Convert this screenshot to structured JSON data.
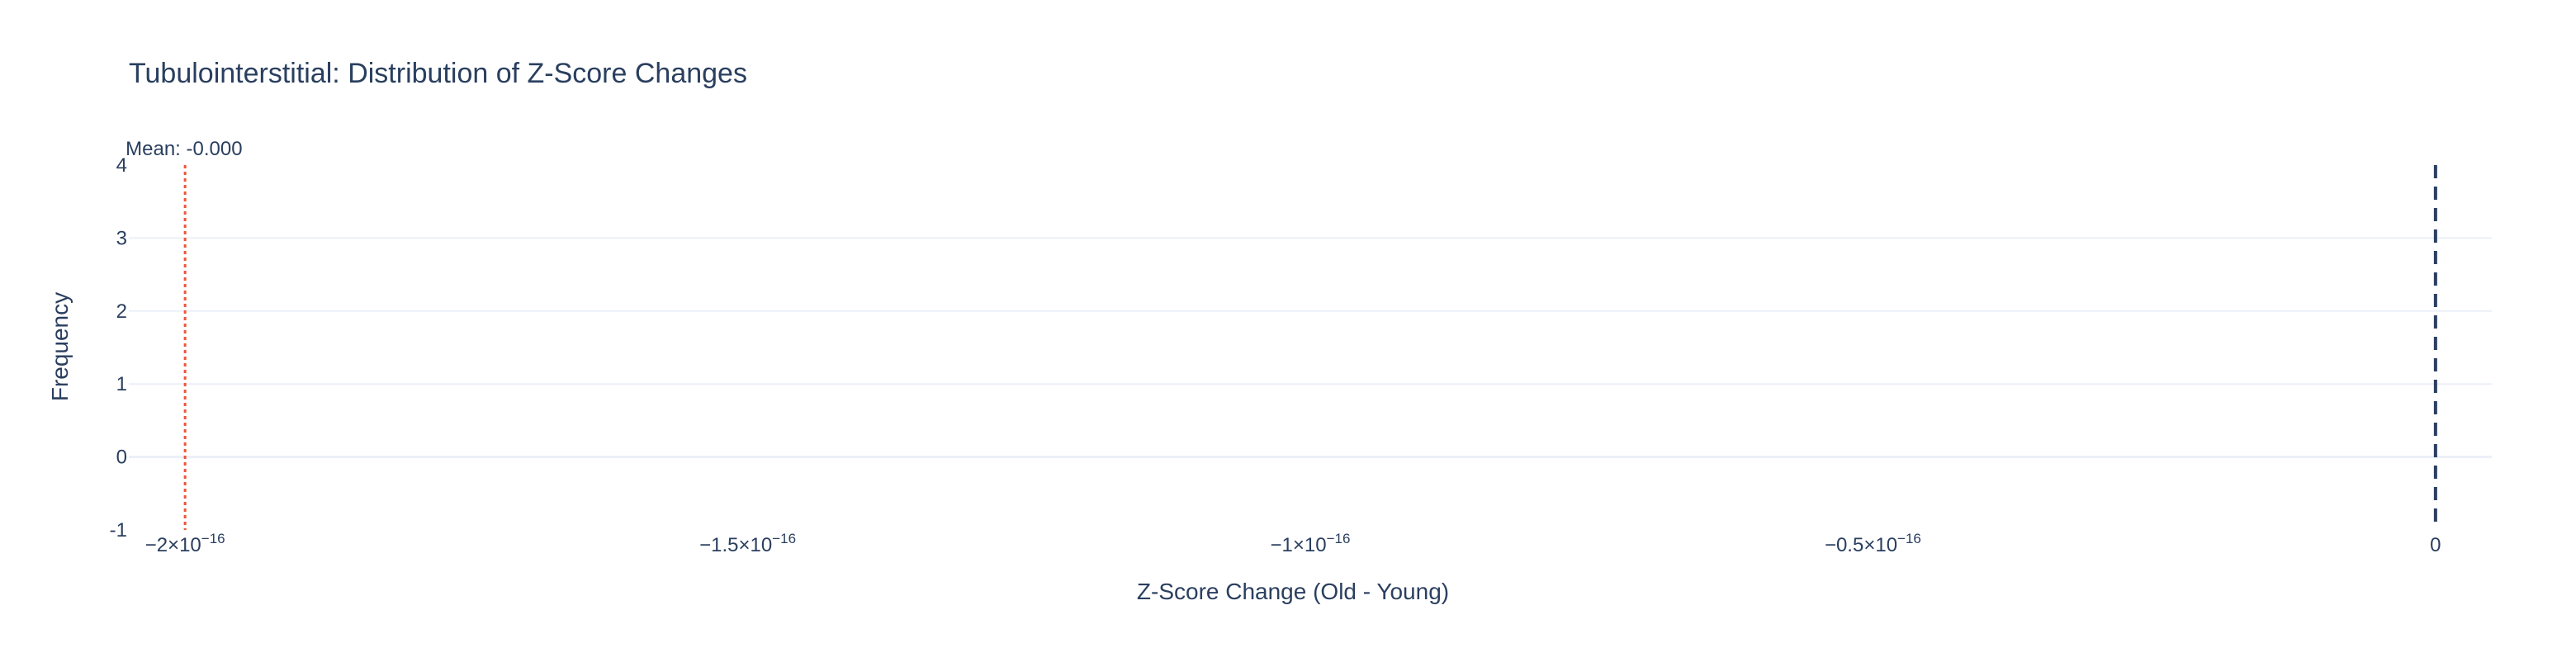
{
  "chart_data": {
    "type": "bar",
    "title": "Tubulointerstitial: Distribution of Z-Score Changes",
    "xlabel": "Z-Score Change (Old - Young)",
    "ylabel": "Frequency",
    "xlim": [
      -2.05e-16,
      5e-18
    ],
    "ylim": [
      -1,
      4
    ],
    "x_ticks": [
      {
        "value": -2e-16,
        "mantissa": "−2",
        "exp": "−16"
      },
      {
        "value": -1.5e-16,
        "mantissa": "−1.5",
        "exp": "−16"
      },
      {
        "value": -1e-16,
        "mantissa": "−1",
        "exp": "−16"
      },
      {
        "value": -5e-17,
        "mantissa": "−0.5",
        "exp": "−16"
      },
      {
        "value": 0,
        "mantissa": "0",
        "exp": ""
      }
    ],
    "y_ticks": [
      "-1",
      "0",
      "1",
      "2",
      "3",
      "4"
    ],
    "grid": true,
    "series": [],
    "mean_line": {
      "value": -2e-16,
      "label": "Mean: -0.000",
      "color": "#ef553b"
    },
    "zero_line": {
      "value": 0,
      "color": "#2a3f5f"
    },
    "colors": {
      "text": "#2a3f5f",
      "grid": "#ebf0f8",
      "zeroline": "#ebf0f8"
    }
  }
}
